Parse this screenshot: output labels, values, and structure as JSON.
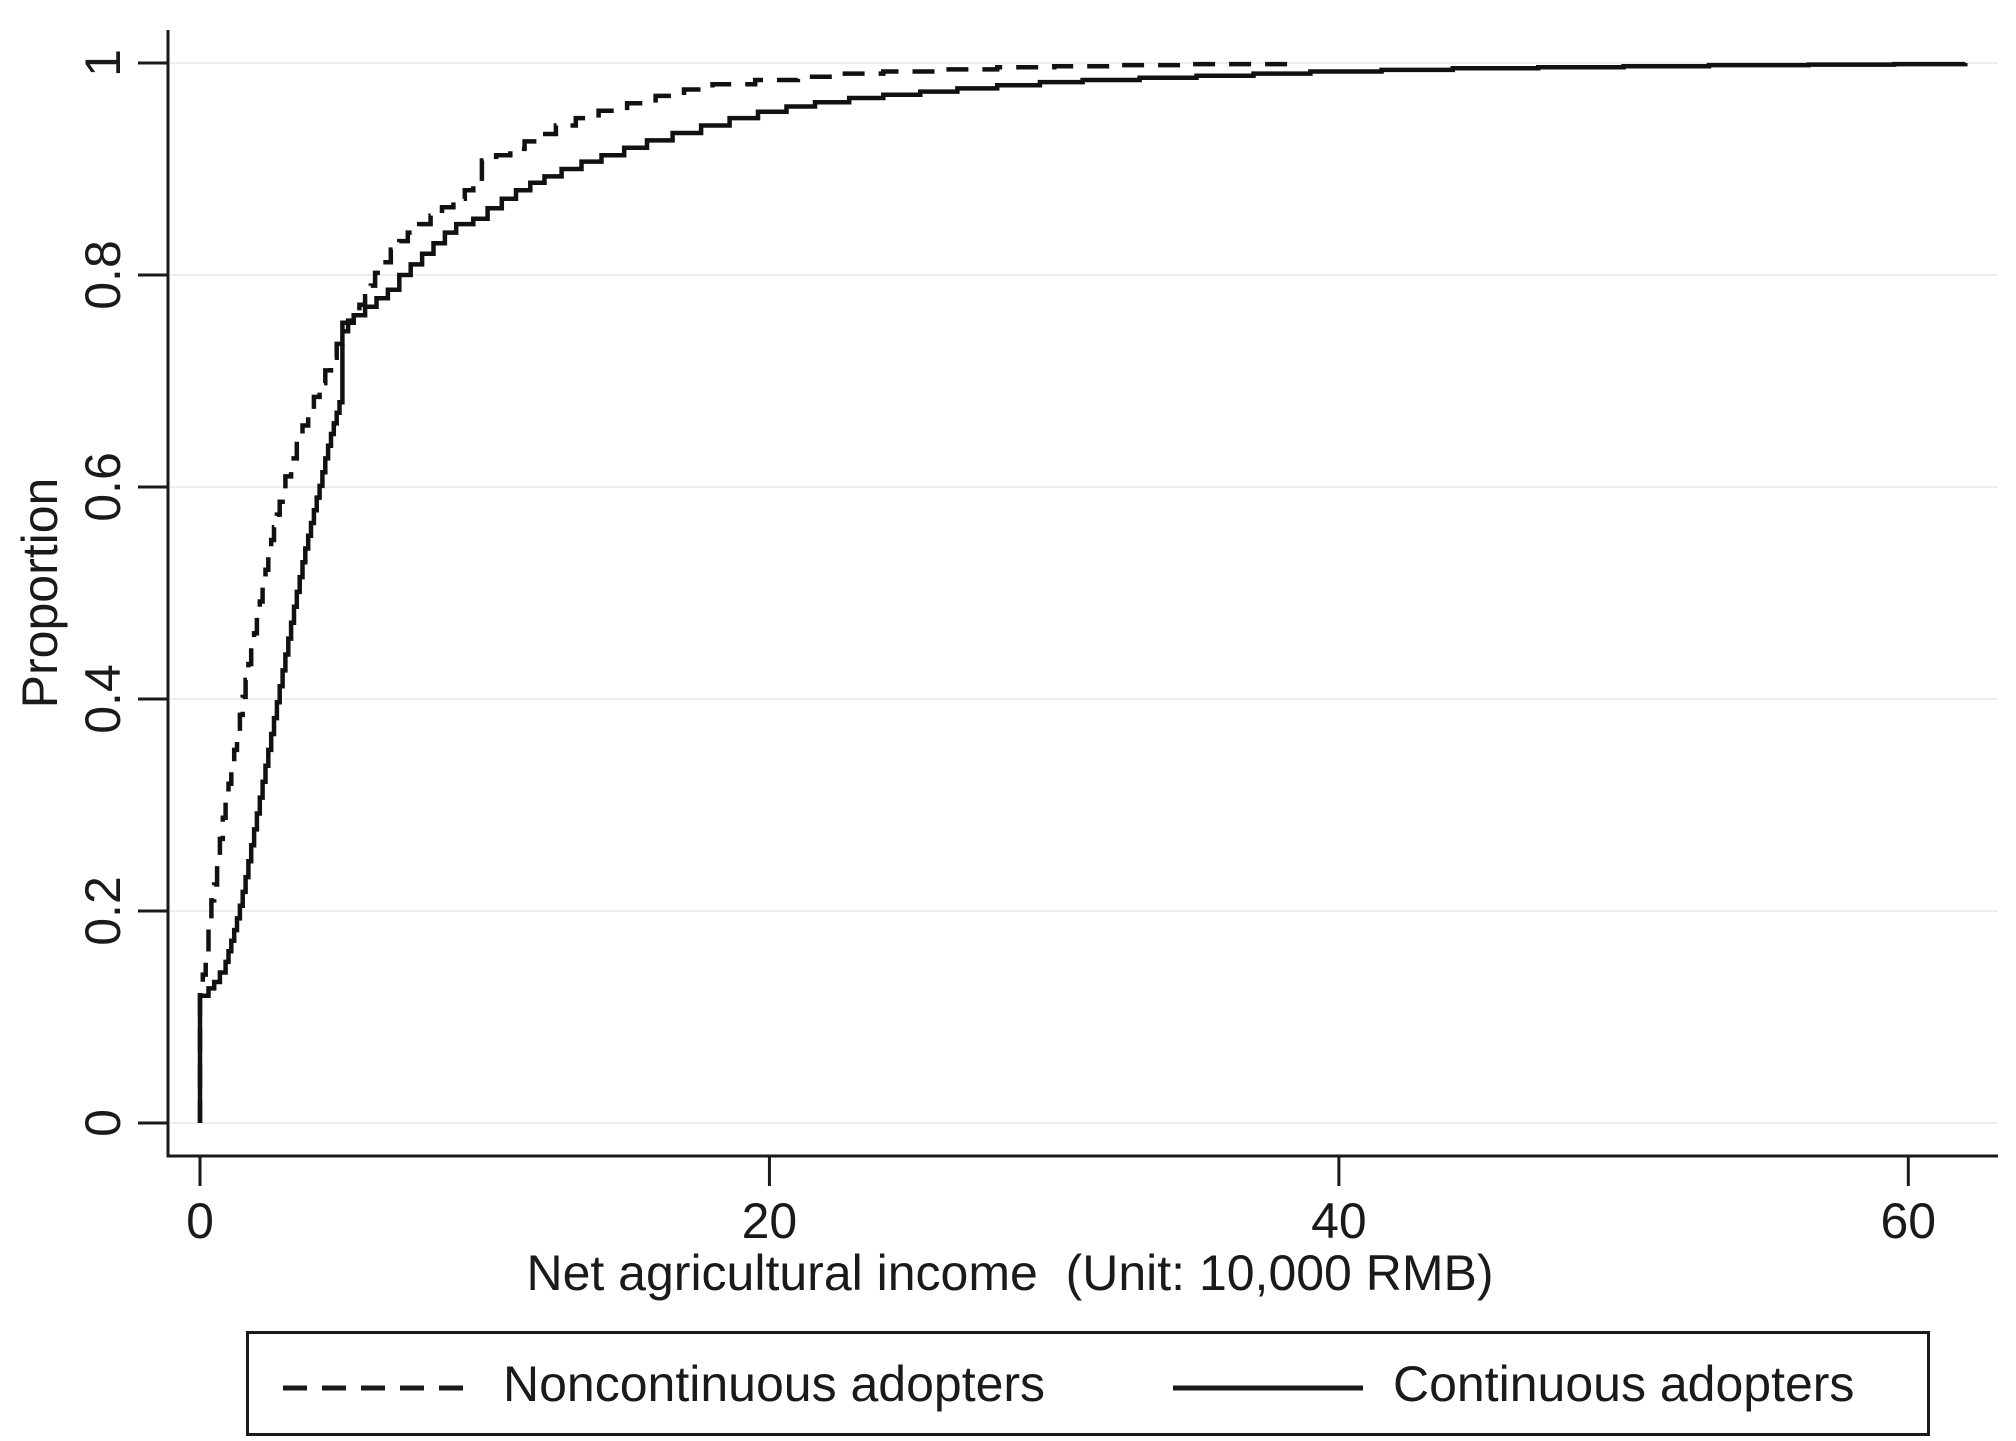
{
  "figure": {
    "background": "#ffffff",
    "axis_color": "#1a1a1a",
    "grid_color": "#e6f0f3",
    "line_color": "#111111"
  },
  "chart_data": {
    "type": "line",
    "subtype": "empirical-cdf-step",
    "title": "",
    "xlabel": "Net agricultural income  (Unit: 10,000 RMB)",
    "ylabel": "Proportion",
    "xlim": [
      0,
      63.15
    ],
    "ylim": [
      0,
      1
    ],
    "grid": "horizontal-only",
    "xticks": {
      "values": [
        0,
        20,
        40,
        60
      ],
      "labels": [
        "0",
        "20",
        "40",
        "60"
      ]
    },
    "yticks": {
      "values": [
        0,
        0.2,
        0.4,
        0.6,
        0.8,
        1
      ],
      "labels": [
        "0",
        "0.2",
        "0.4",
        "0.6",
        "0.8",
        "1"
      ]
    },
    "legend": {
      "position": "bottom",
      "border": true,
      "entries": [
        {
          "label": "Noncontinuous adopters",
          "style": "dashed"
        },
        {
          "label": "Continuous adopters",
          "style": "solid"
        }
      ]
    },
    "series": [
      {
        "name": "Noncontinuous adopters",
        "line": "dashed",
        "points": [
          [
            0,
            0
          ],
          [
            0,
            0.125
          ],
          [
            0.1,
            0.14
          ],
          [
            0.2,
            0.16
          ],
          [
            0.3,
            0.185
          ],
          [
            0.4,
            0.21
          ],
          [
            0.5,
            0.225
          ],
          [
            0.6,
            0.25
          ],
          [
            0.7,
            0.268
          ],
          [
            0.8,
            0.288
          ],
          [
            0.9,
            0.305
          ],
          [
            1.0,
            0.32
          ],
          [
            1.1,
            0.335
          ],
          [
            1.2,
            0.352
          ],
          [
            1.3,
            0.368
          ],
          [
            1.4,
            0.385
          ],
          [
            1.5,
            0.402
          ],
          [
            1.6,
            0.418
          ],
          [
            1.7,
            0.433
          ],
          [
            1.8,
            0.448
          ],
          [
            1.9,
            0.462
          ],
          [
            2.0,
            0.477
          ],
          [
            2.1,
            0.492
          ],
          [
            2.2,
            0.507
          ],
          [
            2.3,
            0.522
          ],
          [
            2.4,
            0.537
          ],
          [
            2.5,
            0.55
          ],
          [
            2.6,
            0.562
          ],
          [
            2.7,
            0.574
          ],
          [
            2.8,
            0.586
          ],
          [
            2.9,
            0.598
          ],
          [
            3.0,
            0.61
          ],
          [
            3.2,
            0.627
          ],
          [
            3.4,
            0.643
          ],
          [
            3.6,
            0.658
          ],
          [
            3.8,
            0.672
          ],
          [
            4.0,
            0.685
          ],
          [
            4.2,
            0.698
          ],
          [
            4.4,
            0.71
          ],
          [
            4.6,
            0.722
          ],
          [
            4.8,
            0.735
          ],
          [
            5.0,
            0.747
          ],
          [
            5.2,
            0.757
          ],
          [
            5.4,
            0.765
          ],
          [
            5.6,
            0.772
          ],
          [
            5.8,
            0.78
          ],
          [
            6.0,
            0.79
          ],
          [
            6.15,
            0.802
          ],
          [
            6.4,
            0.812
          ],
          [
            6.7,
            0.824
          ],
          [
            7.0,
            0.832
          ],
          [
            7.3,
            0.84
          ],
          [
            7.7,
            0.848
          ],
          [
            8.1,
            0.856
          ],
          [
            8.5,
            0.864
          ],
          [
            8.9,
            0.872
          ],
          [
            9.3,
            0.88
          ],
          [
            9.6,
            0.888
          ],
          [
            9.9,
            0.908
          ],
          [
            10.4,
            0.913
          ],
          [
            10.9,
            0.919
          ],
          [
            11.4,
            0.926
          ],
          [
            11.9,
            0.933
          ],
          [
            12.5,
            0.941
          ],
          [
            13.2,
            0.948
          ],
          [
            14.0,
            0.955
          ],
          [
            15.0,
            0.962
          ],
          [
            16.0,
            0.969
          ],
          [
            17.0,
            0.975
          ],
          [
            18.0,
            0.98
          ],
          [
            19.5,
            0.984
          ],
          [
            21.0,
            0.987
          ],
          [
            22.5,
            0.99
          ],
          [
            24.0,
            0.992
          ],
          [
            26.0,
            0.994
          ],
          [
            28.0,
            0.996
          ],
          [
            30.0,
            0.997
          ],
          [
            32.0,
            0.998
          ],
          [
            34.5,
            0.999
          ],
          [
            38.5,
            1.0
          ]
        ]
      },
      {
        "name": "Continuous adopters",
        "line": "solid",
        "points": [
          [
            0,
            0
          ],
          [
            0,
            0.12
          ],
          [
            0.3,
            0.127
          ],
          [
            0.5,
            0.133
          ],
          [
            0.7,
            0.142
          ],
          [
            0.9,
            0.152
          ],
          [
            1.0,
            0.162
          ],
          [
            1.1,
            0.172
          ],
          [
            1.2,
            0.182
          ],
          [
            1.3,
            0.193
          ],
          [
            1.4,
            0.205
          ],
          [
            1.5,
            0.218
          ],
          [
            1.6,
            0.232
          ],
          [
            1.7,
            0.247
          ],
          [
            1.8,
            0.262
          ],
          [
            1.9,
            0.277
          ],
          [
            2.0,
            0.292
          ],
          [
            2.1,
            0.307
          ],
          [
            2.2,
            0.322
          ],
          [
            2.3,
            0.337
          ],
          [
            2.4,
            0.352
          ],
          [
            2.5,
            0.367
          ],
          [
            2.6,
            0.382
          ],
          [
            2.7,
            0.397
          ],
          [
            2.8,
            0.412
          ],
          [
            2.9,
            0.427
          ],
          [
            3.0,
            0.442
          ],
          [
            3.1,
            0.457
          ],
          [
            3.2,
            0.472
          ],
          [
            3.3,
            0.487
          ],
          [
            3.4,
            0.501
          ],
          [
            3.5,
            0.515
          ],
          [
            3.6,
            0.529
          ],
          [
            3.7,
            0.542
          ],
          [
            3.8,
            0.554
          ],
          [
            3.9,
            0.566
          ],
          [
            4.0,
            0.578
          ],
          [
            4.1,
            0.59
          ],
          [
            4.2,
            0.601
          ],
          [
            4.3,
            0.614
          ],
          [
            4.4,
            0.627
          ],
          [
            4.5,
            0.639
          ],
          [
            4.6,
            0.65
          ],
          [
            4.7,
            0.66
          ],
          [
            4.8,
            0.67
          ],
          [
            4.9,
            0.68
          ],
          [
            5.0,
            0.715
          ],
          [
            5.0,
            0.755
          ],
          [
            5.4,
            0.762
          ],
          [
            5.8,
            0.77
          ],
          [
            6.2,
            0.778
          ],
          [
            6.6,
            0.786
          ],
          [
            7.0,
            0.8
          ],
          [
            7.4,
            0.81
          ],
          [
            7.8,
            0.82
          ],
          [
            8.2,
            0.83
          ],
          [
            8.6,
            0.84
          ],
          [
            9.0,
            0.848
          ],
          [
            9.6,
            0.853
          ],
          [
            10.1,
            0.863
          ],
          [
            10.6,
            0.872
          ],
          [
            11.1,
            0.88
          ],
          [
            11.6,
            0.887
          ],
          [
            12.1,
            0.893
          ],
          [
            12.7,
            0.9
          ],
          [
            13.4,
            0.907
          ],
          [
            14.1,
            0.913
          ],
          [
            14.9,
            0.92
          ],
          [
            15.7,
            0.927
          ],
          [
            16.6,
            0.934
          ],
          [
            17.6,
            0.941
          ],
          [
            18.6,
            0.948
          ],
          [
            19.6,
            0.954
          ],
          [
            20.6,
            0.959
          ],
          [
            21.6,
            0.963
          ],
          [
            22.8,
            0.967
          ],
          [
            24.0,
            0.97
          ],
          [
            25.3,
            0.973
          ],
          [
            26.6,
            0.976
          ],
          [
            28.0,
            0.979
          ],
          [
            29.5,
            0.982
          ],
          [
            31.0,
            0.984
          ],
          [
            33.0,
            0.986
          ],
          [
            35.0,
            0.988
          ],
          [
            37.0,
            0.99
          ],
          [
            39.0,
            0.992
          ],
          [
            41.5,
            0.9935
          ],
          [
            44.0,
            0.995
          ],
          [
            47.0,
            0.996
          ],
          [
            50.0,
            0.997
          ],
          [
            53.0,
            0.998
          ],
          [
            56.5,
            0.9985
          ],
          [
            59.5,
            0.999
          ],
          [
            62.0,
            1.0
          ]
        ]
      }
    ]
  }
}
